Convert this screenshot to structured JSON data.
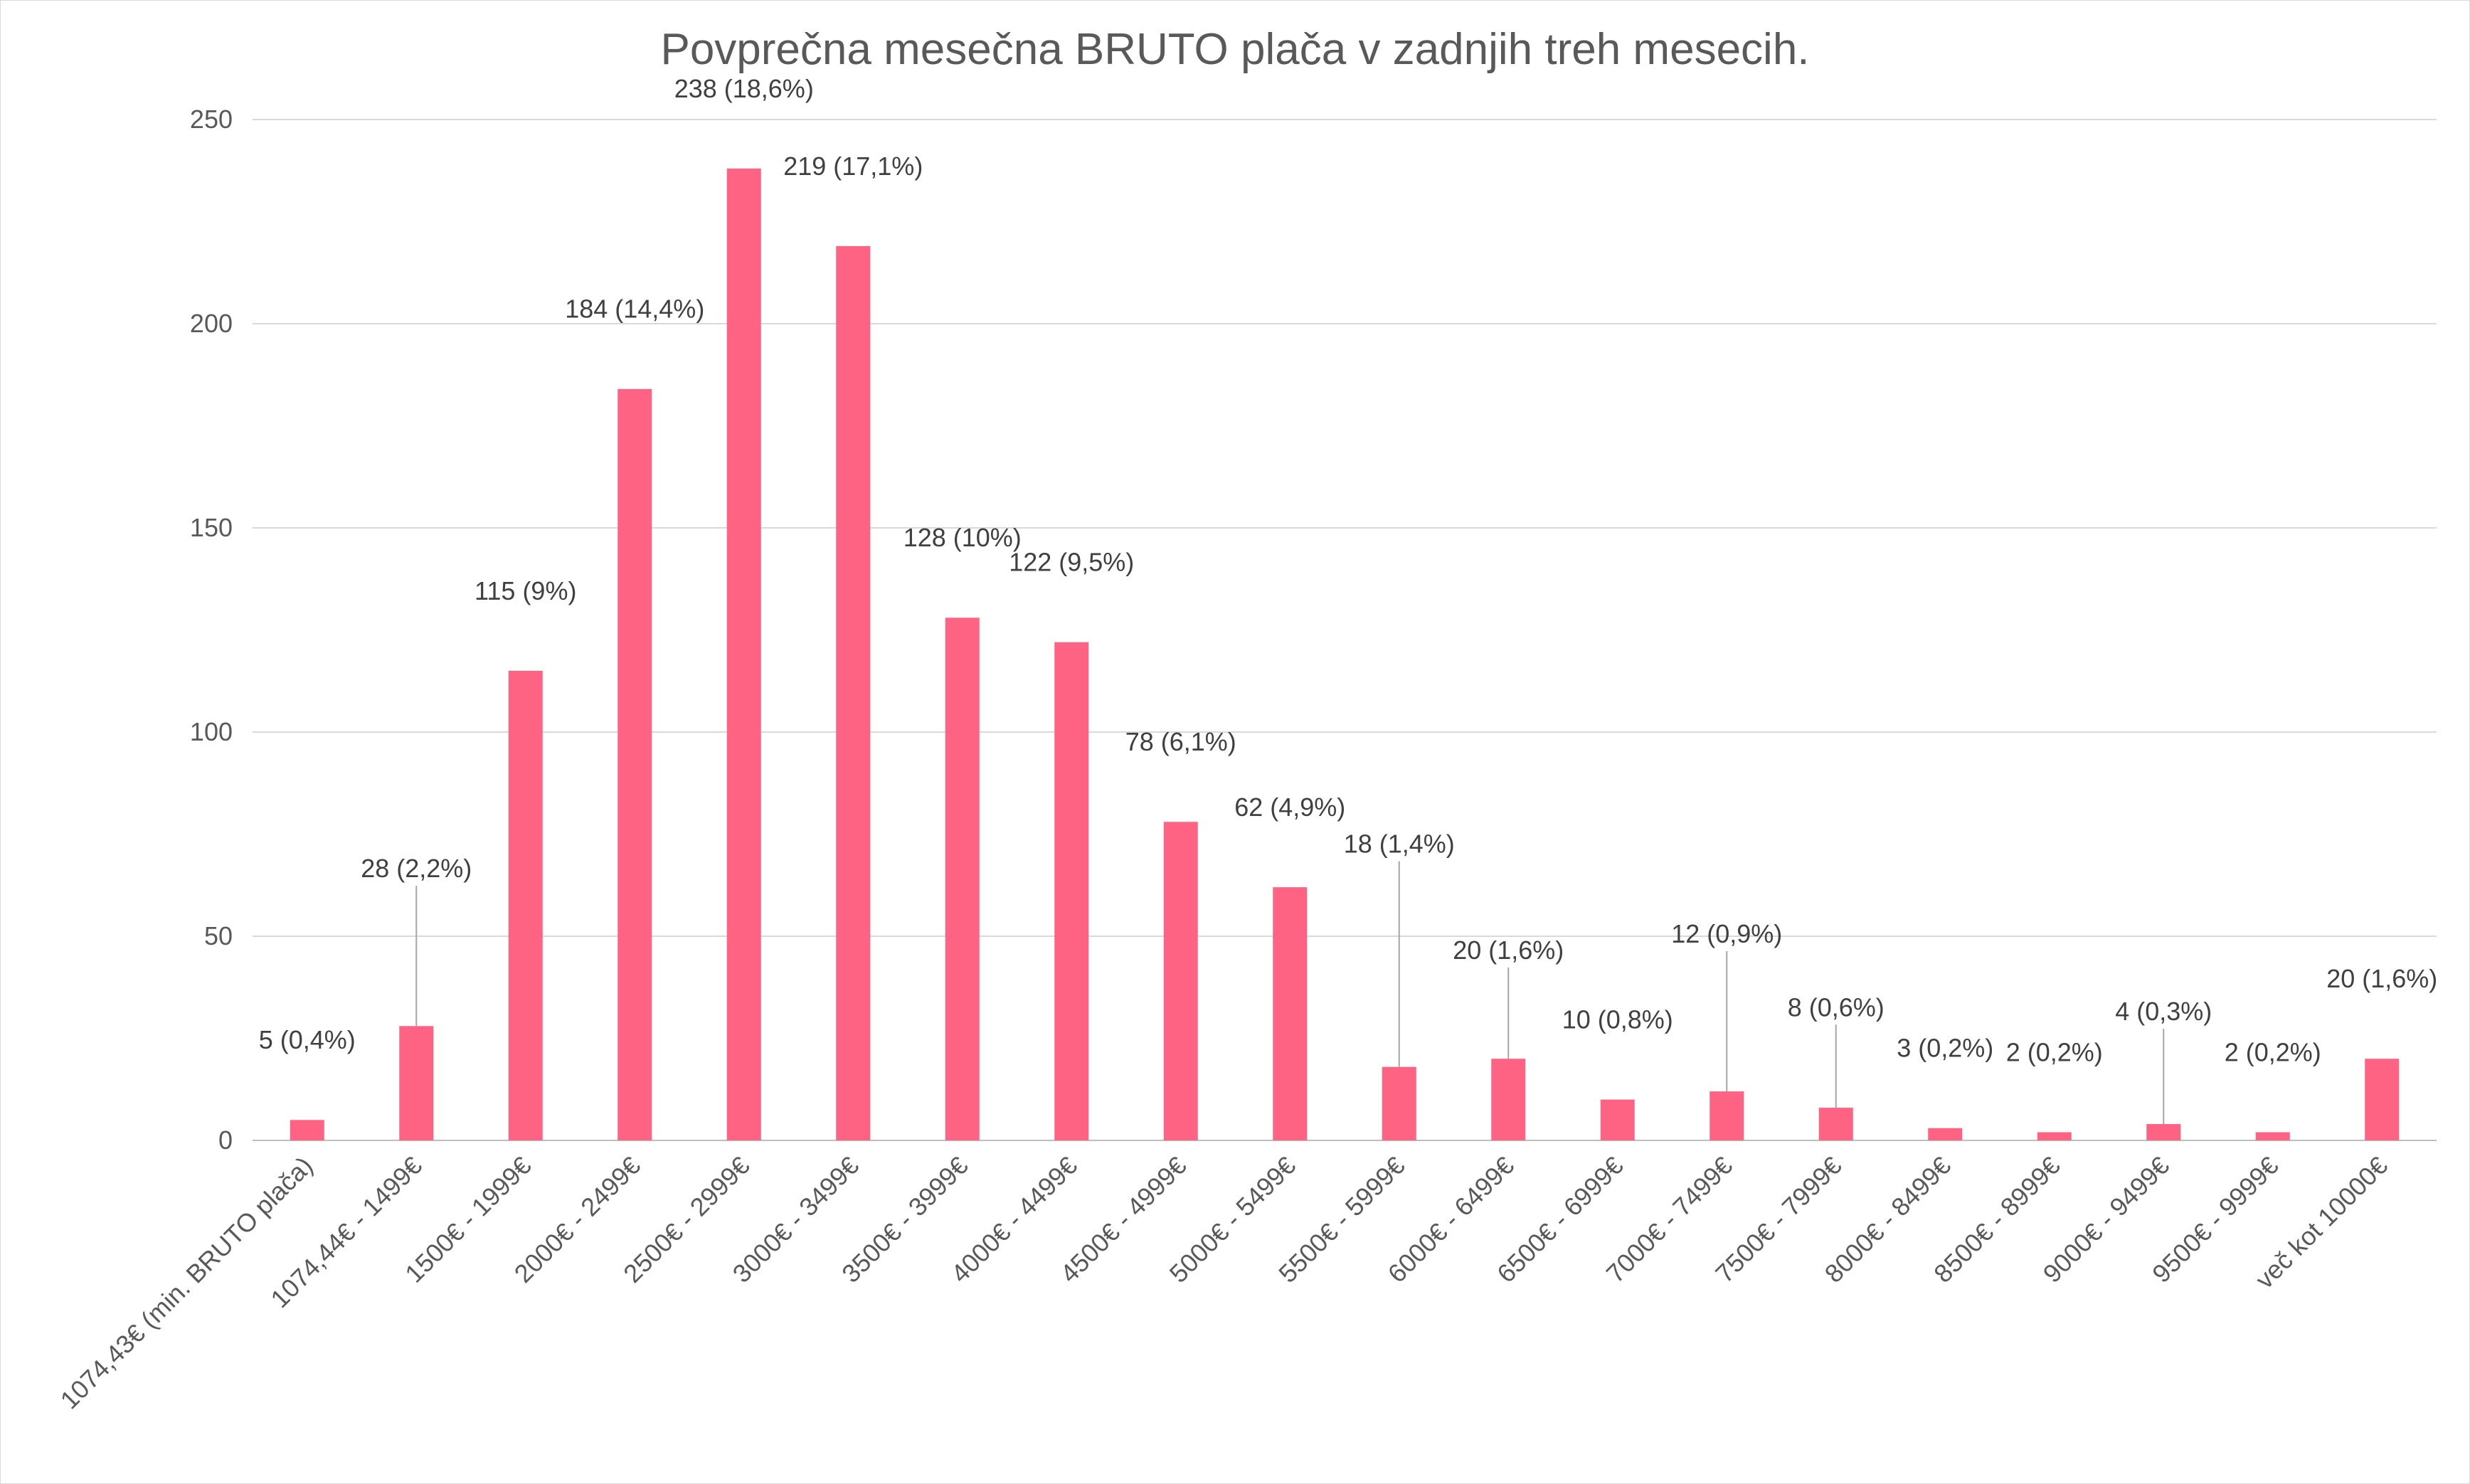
{
  "chart_data": {
    "type": "bar",
    "title": "Povprečna mesečna BRUTO plača v zadnjih treh mesecih.",
    "xlabel": "",
    "ylabel": "",
    "ylim": [
      0,
      250
    ],
    "yticks": [
      0,
      50,
      100,
      150,
      200,
      250
    ],
    "grid": true,
    "legend": "none",
    "color": "#ff6384",
    "categories": [
      "1074,43€ (min. BRUTO plača)",
      "1074,44€ - 1499€",
      "1500€ - 1999€",
      "2000€ - 2499€",
      "2500€ - 2999€",
      "3000€ - 3499€",
      "3500€ - 3999€",
      "4000€ - 4499€",
      "4500€ - 4999€",
      "5000€ - 5499€",
      "5500€ - 5999€",
      "6000€ - 6499€",
      "6500€ - 6999€",
      "7000€ - 7499€",
      "7500€ - 7999€",
      "8000€ - 8499€",
      "8500€ - 8999€",
      "9000€ - 9499€",
      "9500€ - 9999€",
      "več kot 10000€"
    ],
    "values": [
      5,
      28,
      115,
      184,
      238,
      219,
      128,
      122,
      78,
      62,
      18,
      20,
      10,
      12,
      8,
      3,
      2,
      4,
      2,
      20
    ],
    "data_labels": [
      "5 (0,4%)",
      "28 (2,2%)",
      "115 (9%)",
      "184 (14,4%)",
      "238 (18,6%)",
      "219 (17,1%)",
      "128 (10%)",
      "122 (9,5%)",
      "78 (6,1%)",
      "62 (4,9%)",
      "18 (1,4%)",
      "20 (1,6%)",
      "10 (0,8%)",
      "12 (0,9%)",
      "8 (0,6%)",
      "3 (0,2%)",
      "2 (0,2%)",
      "4 (0,3%)",
      "2 (0,2%)",
      "20 (1,6%)"
    ],
    "label_value_offsets": [
      15,
      34,
      15,
      15,
      15,
      15,
      15,
      15,
      15,
      15,
      50,
      22,
      15,
      34,
      20,
      15,
      15,
      23,
      15,
      15
    ],
    "label_leader_lines": [
      false,
      true,
      false,
      false,
      false,
      false,
      false,
      false,
      false,
      false,
      true,
      true,
      false,
      true,
      true,
      false,
      false,
      true,
      false,
      false
    ]
  }
}
